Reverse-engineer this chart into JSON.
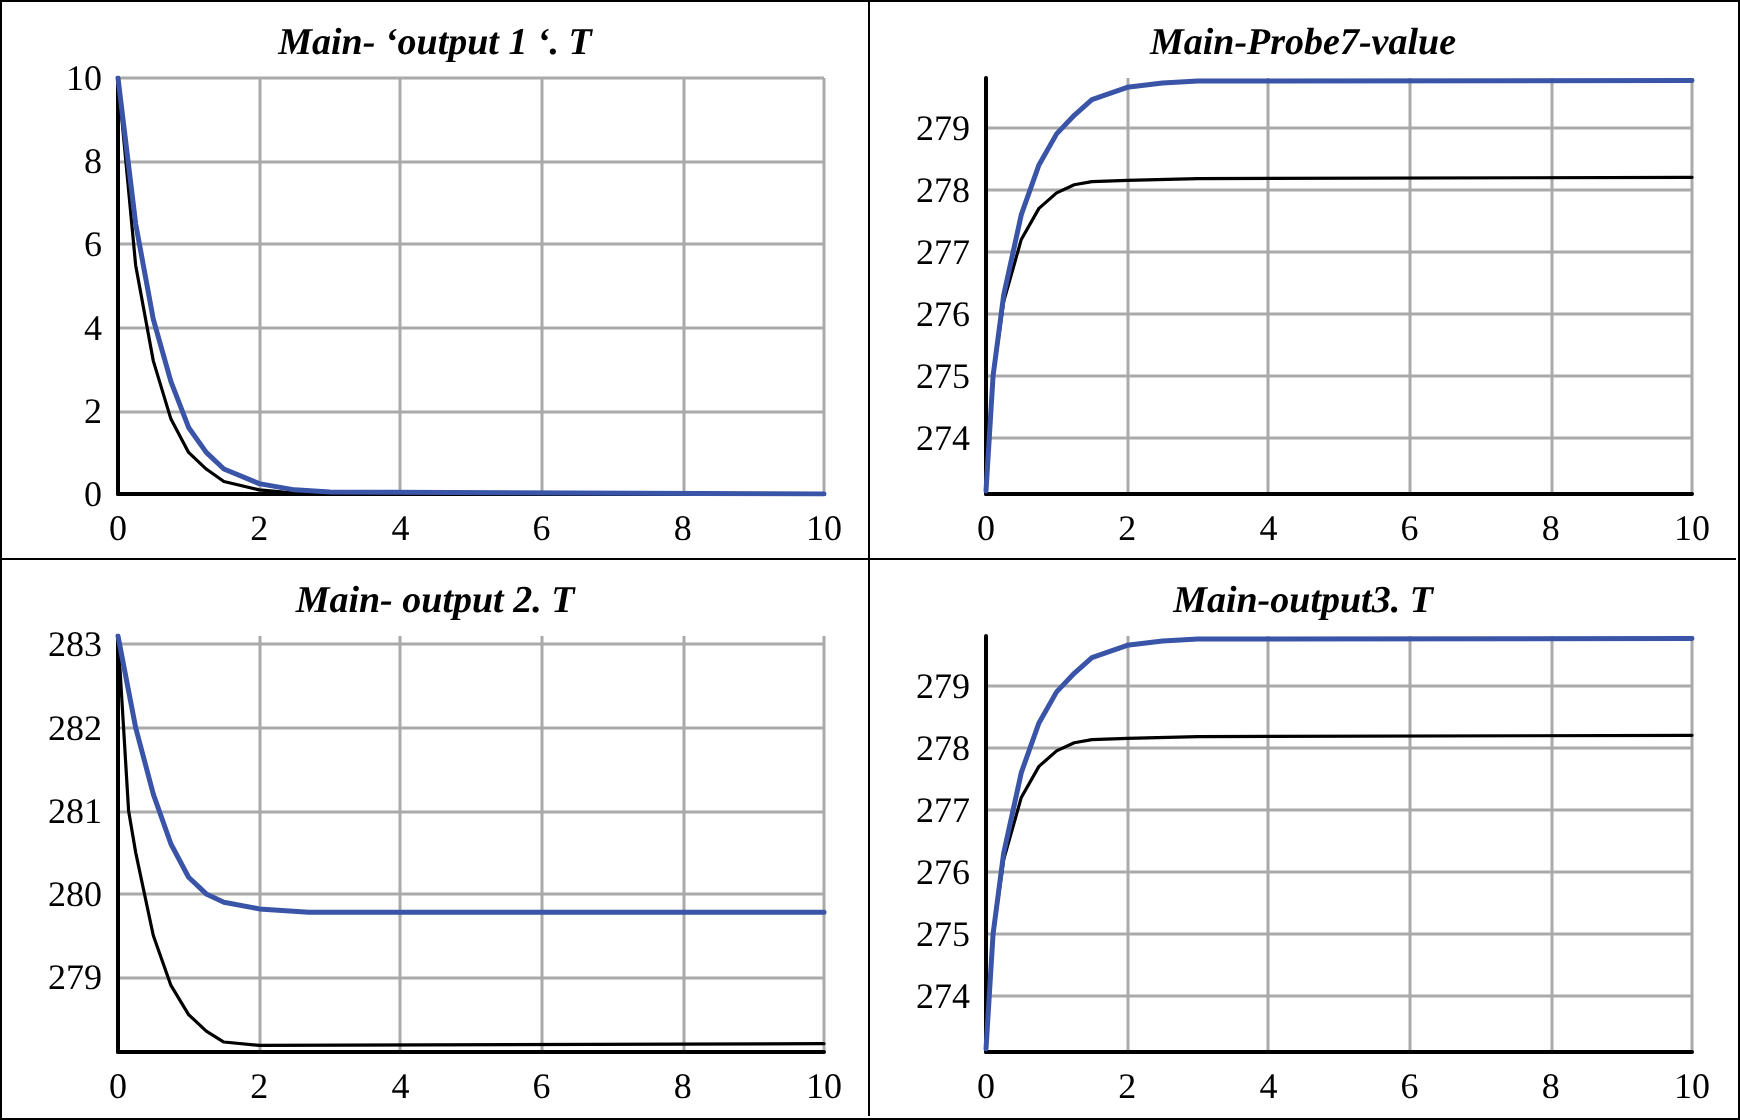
{
  "chart_data": [
    {
      "type": "line",
      "title": "Main- ‘output 1 ‘. T",
      "xlim": [
        0,
        10
      ],
      "xticks": [
        0,
        2,
        4,
        6,
        8,
        10
      ],
      "ylim": [
        0,
        10
      ],
      "yticks": [
        0,
        2,
        4,
        6,
        8,
        10
      ],
      "grid": true,
      "marker": "none",
      "series": [
        {
          "color": "#3a54a8",
          "x": [
            0,
            0.25,
            0.5,
            0.75,
            1,
            1.25,
            1.5,
            2,
            2.5,
            3,
            10
          ],
          "values": [
            10,
            6.5,
            4.2,
            2.7,
            1.6,
            1.0,
            0.6,
            0.25,
            0.1,
            0.05,
            0
          ]
        },
        {
          "color": "#000000",
          "x": [
            0,
            0.25,
            0.5,
            0.75,
            1,
            1.25,
            1.5,
            2,
            2.5,
            3,
            10
          ],
          "values": [
            10,
            5.5,
            3.2,
            1.8,
            1.0,
            0.6,
            0.3,
            0.1,
            0.02,
            0,
            0
          ]
        }
      ]
    },
    {
      "type": "line",
      "title": "Main-Probe7-value",
      "xlim": [
        0,
        10
      ],
      "xticks": [
        0,
        2,
        4,
        6,
        8,
        10
      ],
      "ylim": [
        273.1,
        279.8
      ],
      "yticks": [
        274,
        275,
        276,
        277,
        278,
        279
      ],
      "grid": true,
      "marker": "none",
      "series": [
        {
          "color": "#3a54a8",
          "x": [
            0,
            0.1,
            0.25,
            0.5,
            0.75,
            1,
            1.25,
            1.5,
            2,
            2.5,
            3,
            10
          ],
          "values": [
            273.15,
            275,
            276.3,
            277.6,
            278.4,
            278.9,
            279.2,
            279.45,
            279.65,
            279.72,
            279.75,
            279.76
          ]
        },
        {
          "color": "#000000",
          "x": [
            0,
            0.1,
            0.25,
            0.5,
            0.75,
            1,
            1.25,
            1.5,
            2,
            3,
            10
          ],
          "values": [
            273.15,
            275,
            276.2,
            277.2,
            277.7,
            277.95,
            278.08,
            278.13,
            278.15,
            278.18,
            278.2
          ]
        }
      ]
    },
    {
      "type": "line",
      "title": "Main- output 2. T",
      "xlim": [
        0,
        10
      ],
      "xticks": [
        0,
        2,
        4,
        6,
        8,
        10
      ],
      "ylim": [
        278.1,
        283.1
      ],
      "yticks": [
        279,
        280,
        281,
        282,
        283
      ],
      "grid": true,
      "marker": "none",
      "series": [
        {
          "color": "#3a54a8",
          "x": [
            0,
            0.25,
            0.5,
            0.75,
            1,
            1.25,
            1.5,
            2,
            2.7,
            10
          ],
          "values": [
            283.1,
            282.0,
            281.2,
            280.6,
            280.2,
            280.0,
            279.9,
            279.82,
            279.78,
            279.78
          ]
        },
        {
          "color": "#000000",
          "x": [
            0,
            0.15,
            0.25,
            0.5,
            0.75,
            1,
            1.25,
            1.5,
            2,
            10
          ],
          "values": [
            283.1,
            281.0,
            280.5,
            279.5,
            278.9,
            278.55,
            278.35,
            278.22,
            278.18,
            278.2
          ]
        }
      ]
    },
    {
      "type": "line",
      "title": "Main-output3. T",
      "xlim": [
        0,
        10
      ],
      "xticks": [
        0,
        2,
        4,
        6,
        8,
        10
      ],
      "ylim": [
        273.1,
        279.8
      ],
      "yticks": [
        274,
        275,
        276,
        277,
        278,
        279
      ],
      "grid": true,
      "marker": "none",
      "series": [
        {
          "color": "#3a54a8",
          "x": [
            0,
            0.1,
            0.25,
            0.5,
            0.75,
            1,
            1.25,
            1.5,
            2,
            2.5,
            3,
            10
          ],
          "values": [
            273.15,
            275,
            276.3,
            277.6,
            278.4,
            278.9,
            279.2,
            279.45,
            279.65,
            279.72,
            279.75,
            279.76
          ]
        },
        {
          "color": "#000000",
          "x": [
            0,
            0.1,
            0.25,
            0.5,
            0.75,
            1,
            1.25,
            1.5,
            2,
            3,
            10
          ],
          "values": [
            273.15,
            275,
            276.2,
            277.2,
            277.7,
            277.95,
            278.08,
            278.13,
            278.15,
            278.18,
            278.2
          ]
        }
      ]
    }
  ]
}
